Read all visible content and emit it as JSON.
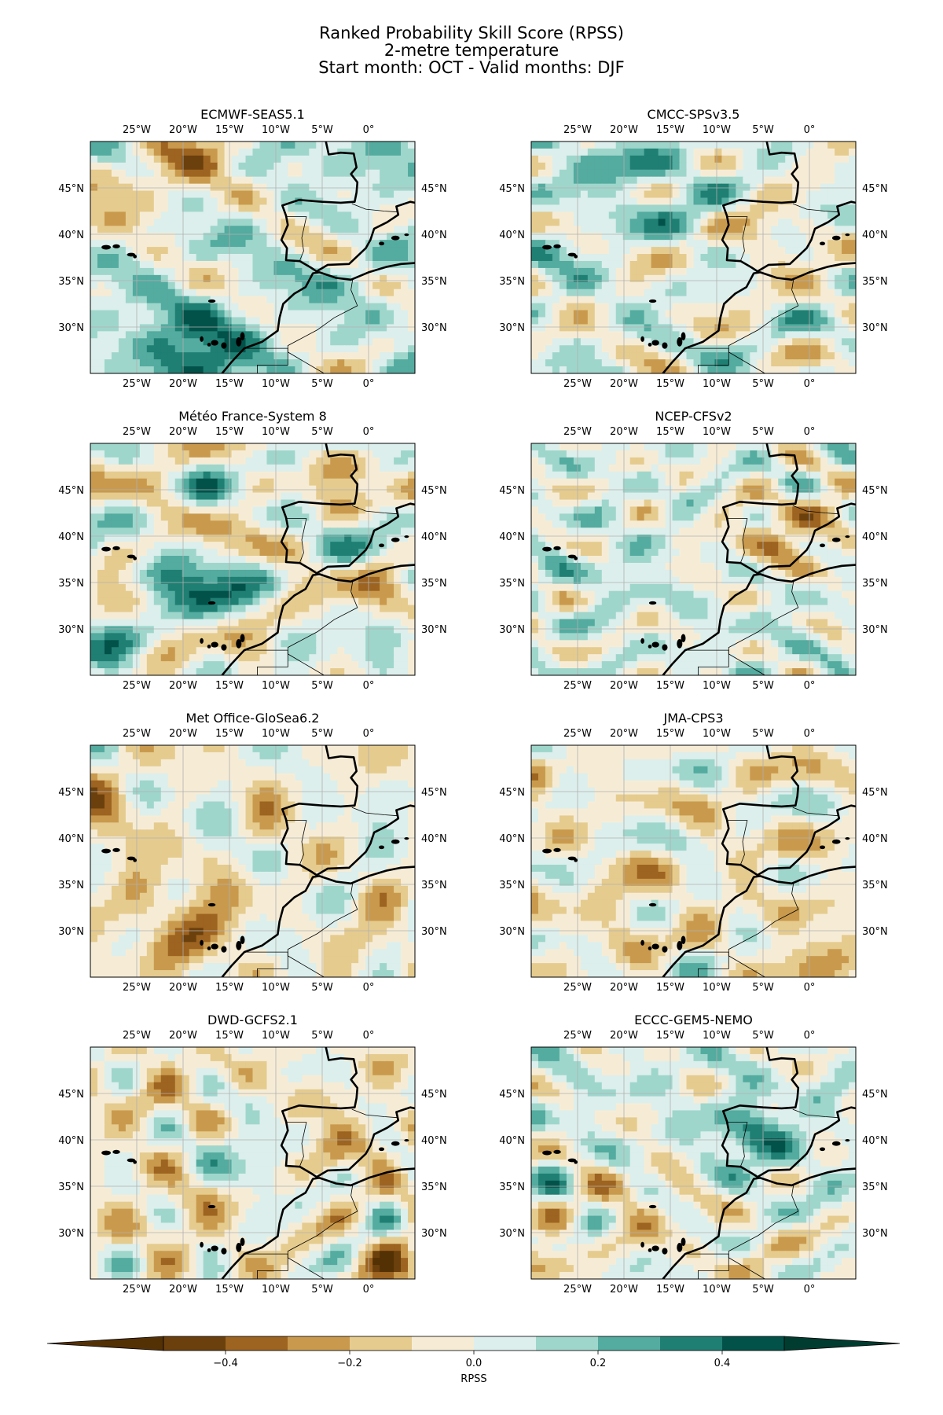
{
  "title": {
    "line1": "Ranked Probability Skill Score (RPSS)",
    "line2": "2-metre temperature",
    "line3": "Start month: OCT - Valid months: DJF"
  },
  "map_extent": {
    "lon": [
      -30,
      5
    ],
    "lat": [
      25,
      50
    ]
  },
  "lon_ticks": [
    {
      "value": -25,
      "label": "25°W"
    },
    {
      "value": -20,
      "label": "20°W"
    },
    {
      "value": -15,
      "label": "15°W"
    },
    {
      "value": -10,
      "label": "10°W"
    },
    {
      "value": -5,
      "label": "5°W"
    },
    {
      "value": 0,
      "label": "0°"
    }
  ],
  "lat_ticks": [
    {
      "value": 45,
      "label": "45°N"
    },
    {
      "value": 40,
      "label": "40°N"
    },
    {
      "value": 35,
      "label": "35°N"
    },
    {
      "value": 30,
      "label": "30°N"
    }
  ],
  "panels": [
    {
      "title": "ECMWF-SEAS5.1",
      "seed": 11,
      "bias": 0.06
    },
    {
      "title": "CMCC-SPSv3.5",
      "seed": 23,
      "bias": 0.02
    },
    {
      "title": "Météo France-System 8",
      "seed": 37,
      "bias": -0.02
    },
    {
      "title": "NCEP-CFSv2",
      "seed": 41,
      "bias": 0.03
    },
    {
      "title": "Met Office-GloSea6.2",
      "seed": 53,
      "bias": -0.03
    },
    {
      "title": "JMA-CPS3",
      "seed": 67,
      "bias": -0.03
    },
    {
      "title": "DWD-GCFS2.1",
      "seed": 71,
      "bias": -0.05
    },
    {
      "title": "ECCC-GEM5-NEMO",
      "seed": 83,
      "bias": 0.04
    }
  ],
  "colorbar": {
    "label": "RPSS",
    "levels": [
      -0.5,
      -0.4,
      -0.3,
      -0.2,
      -0.1,
      0.0,
      0.1,
      0.2,
      0.3,
      0.4,
      0.5
    ],
    "colors": [
      "#6b400d",
      "#9d6320",
      "#c99a4d",
      "#e5cb8e",
      "#f6ecd6",
      "#dcefec",
      "#9fd6cc",
      "#54ab9f",
      "#1f7f73",
      "#02524a"
    ],
    "under_color": "#543005",
    "over_color": "#003c30",
    "ticks": [
      {
        "value": -0.4,
        "label": "−0.4"
      },
      {
        "value": -0.2,
        "label": "−0.2"
      },
      {
        "value": 0.0,
        "label": "0.0"
      },
      {
        "value": 0.2,
        "label": "0.2"
      },
      {
        "value": 0.4,
        "label": "0.4"
      }
    ]
  }
}
